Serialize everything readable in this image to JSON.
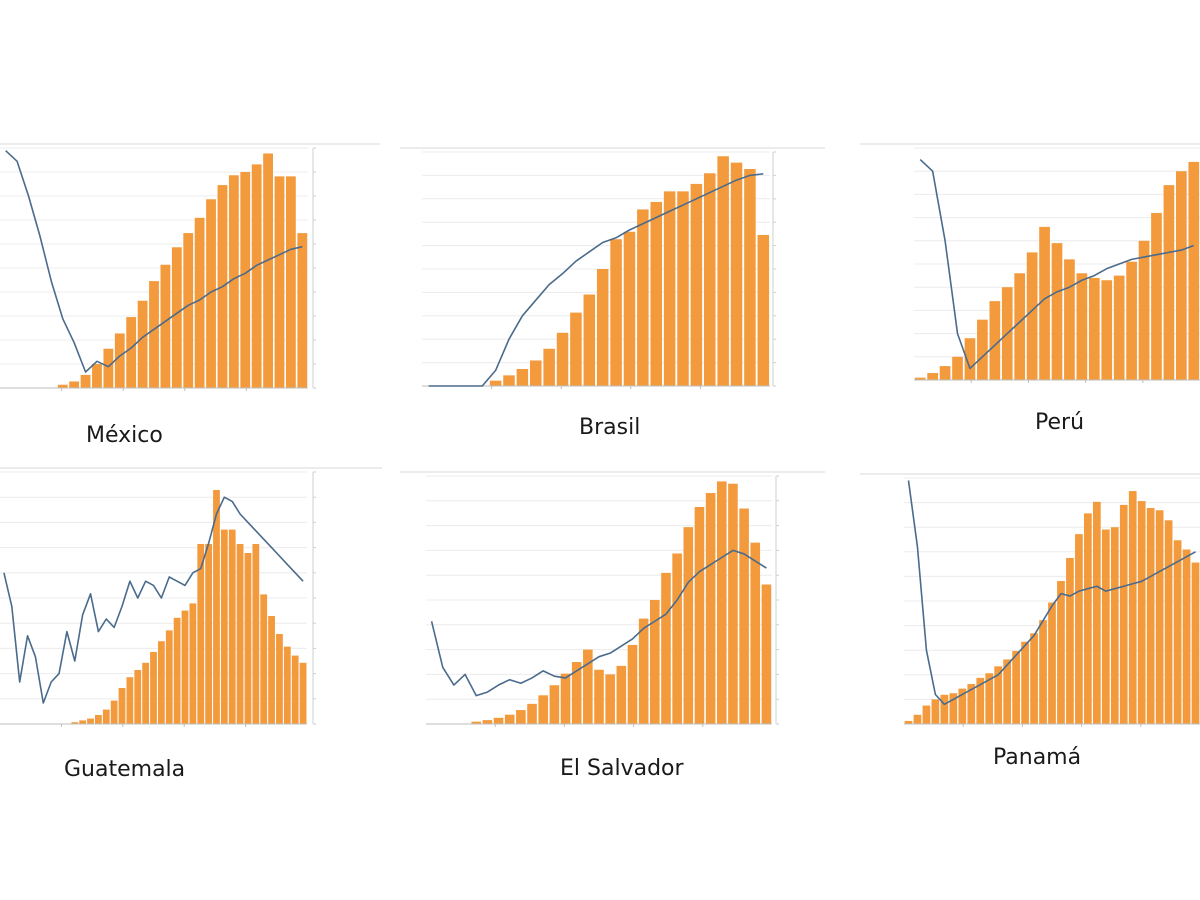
{
  "chart_data": [
    {
      "type": "bar",
      "title": "México",
      "categories": [
        "",
        "",
        "",
        "",
        "",
        "",
        "",
        "",
        "",
        "",
        "",
        "",
        "",
        "",
        "",
        "",
        "",
        "",
        "",
        "",
        "",
        "",
        "",
        "",
        "",
        "",
        ""
      ],
      "series": [
        {
          "type": "bar",
          "color": "#F39A3C",
          "values": [
            0,
            0,
            0,
            0,
            0,
            0.3,
            0.6,
            1.2,
            2.2,
            3.6,
            5.0,
            6.5,
            8.0,
            9.8,
            11.3,
            12.9,
            14.2,
            15.6,
            17.3,
            18.6,
            19.5,
            19.8,
            20.5,
            21.5,
            19.4,
            19.4,
            14.2
          ]
        },
        {
          "type": "line",
          "color": "#4A6B8C",
          "values": [
            0.089,
            0.085,
            0.072,
            0.057,
            0.04,
            0.026,
            0.017,
            0.006,
            0.01,
            0.008,
            0.012,
            0.015,
            0.019,
            0.022,
            0.025,
            0.028,
            0.031,
            0.033,
            0.036,
            0.038,
            0.041,
            0.043,
            0.046,
            0.048,
            0.05,
            0.052,
            0.053
          ]
        }
      ],
      "x_tick_labels": [
        "",
        "",
        "",
        ""
      ],
      "ylim": [
        0,
        22
      ],
      "y2lim": [
        0,
        0.09
      ],
      "grid": true
    },
    {
      "type": "bar",
      "title": "Brasil",
      "categories": [
        "",
        "",
        "",
        "",
        "",
        "",
        "",
        "",
        "",
        "",
        "",
        "",
        "",
        "",
        "",
        "",
        "",
        "",
        "",
        "",
        "",
        "",
        "",
        "",
        "",
        ""
      ],
      "series": [
        {
          "type": "bar",
          "color": "#F39A3C",
          "values": [
            0,
            0,
            0,
            0,
            0,
            0.5,
            1.0,
            1.6,
            2.4,
            3.5,
            5.0,
            6.9,
            8.6,
            11.0,
            13.8,
            14.5,
            16.6,
            17.3,
            18.3,
            18.3,
            19.0,
            20.0,
            21.6,
            21.0,
            20.4,
            14.2
          ]
        },
        {
          "type": "line",
          "color": "#4A6B8C",
          "values": [
            0.0,
            0.0,
            0.0,
            0.0,
            0.0,
            0.01,
            0.03,
            0.045,
            0.055,
            0.065,
            0.072,
            0.08,
            0.086,
            0.092,
            0.095,
            0.1,
            0.104,
            0.108,
            0.112,
            0.116,
            0.12,
            0.124,
            0.128,
            0.132,
            0.135,
            0.136
          ]
        }
      ],
      "x_tick_labels": [
        "",
        "",
        "",
        ""
      ],
      "ylim": [
        0,
        22
      ],
      "y2lim": [
        0,
        0.15
      ],
      "grid": true
    },
    {
      "type": "bar",
      "title": "Perú",
      "categories": [
        "",
        "",
        "",
        "",
        "",
        "",
        "",
        "",
        "",
        "",
        "",
        "",
        "",
        "",
        "",
        "",
        "",
        "",
        "",
        "",
        "",
        "",
        ""
      ],
      "series": [
        {
          "type": "bar",
          "color": "#F39A3C",
          "values": [
            0.1,
            0.3,
            0.6,
            1.0,
            1.8,
            2.6,
            3.4,
            4.0,
            4.6,
            5.5,
            6.6,
            5.9,
            5.2,
            4.6,
            4.4,
            4.3,
            4.5,
            5.1,
            6.0,
            7.2,
            8.4,
            9.0,
            9.4
          ]
        },
        {
          "type": "line",
          "color": "#4A6B8C",
          "values": [
            0.095,
            0.09,
            0.06,
            0.02,
            0.005,
            0.01,
            0.015,
            0.02,
            0.025,
            0.03,
            0.035,
            0.038,
            0.04,
            0.043,
            0.045,
            0.048,
            0.05,
            0.052,
            0.053,
            0.054,
            0.055,
            0.056,
            0.058
          ]
        }
      ],
      "x_tick_labels": [
        "",
        "",
        "",
        ""
      ],
      "ylim": [
        0,
        10
      ],
      "y2lim": [
        0,
        0.1
      ],
      "grid": true
    },
    {
      "type": "bar",
      "title": "Guatemala",
      "categories": [
        "",
        "",
        "",
        "",
        "",
        "",
        "",
        "",
        "",
        "",
        "",
        "",
        "",
        "",
        "",
        "",
        "",
        "",
        "",
        "",
        "",
        "",
        "",
        "",
        "",
        "",
        "",
        "",
        "",
        "",
        "",
        "",
        "",
        "",
        "",
        "",
        "",
        "",
        ""
      ],
      "series": [
        {
          "type": "bar",
          "color": "#F39A3C",
          "values": [
            0,
            0,
            0,
            0,
            0,
            0,
            0,
            0,
            0,
            0.1,
            0.2,
            0.3,
            0.5,
            0.8,
            1.3,
            2.0,
            2.6,
            3.0,
            3.4,
            4.0,
            4.6,
            5.2,
            5.9,
            6.3,
            6.7,
            10.0,
            10.0,
            13.0,
            10.8,
            10.8,
            10.0,
            9.5,
            10.0,
            7.2,
            6.0,
            5.0,
            4.3,
            3.8,
            3.4
          ]
        },
        {
          "type": "line",
          "color": "#4A6B8C",
          "values": [
            0.36,
            0.28,
            0.1,
            0.21,
            0.16,
            0.05,
            0.1,
            0.12,
            0.22,
            0.15,
            0.26,
            0.31,
            0.22,
            0.25,
            0.23,
            0.28,
            0.34,
            0.3,
            0.34,
            0.33,
            0.3,
            0.35,
            0.34,
            0.33,
            0.36,
            0.37,
            0.43,
            0.5,
            0.54,
            0.53,
            0.5,
            0.48,
            0.46,
            0.44,
            0.42,
            0.4,
            0.38,
            0.36,
            0.34
          ]
        }
      ],
      "x_tick_labels": [
        "",
        "",
        "",
        ""
      ],
      "ylim": [
        0,
        14
      ],
      "y2lim": [
        0,
        0.6
      ],
      "grid": true
    },
    {
      "type": "bar",
      "title": "El Salvador",
      "categories": [
        "",
        "",
        "",
        "",
        "",
        "",
        "",
        "",
        "",
        "",
        "",
        "",
        "",
        "",
        "",
        "",
        "",
        "",
        "",
        "",
        "",
        "",
        "",
        "",
        "",
        "",
        "",
        "",
        "",
        "",
        ""
      ],
      "series": [
        {
          "type": "bar",
          "color": "#F39A3C",
          "values": [
            0,
            0,
            0,
            0,
            0.3,
            0.5,
            0.8,
            1.2,
            1.8,
            2.6,
            3.7,
            5.0,
            6.5,
            8.0,
            9.6,
            7.0,
            6.4,
            7.5,
            10.2,
            13.6,
            16.0,
            19.5,
            22.0,
            25.4,
            28.0,
            29.8,
            31.3,
            31.0,
            27.8,
            23.4,
            18.0
          ]
        },
        {
          "type": "line",
          "color": "#4A6B8C",
          "values": [
            0.58,
            0.32,
            0.22,
            0.28,
            0.16,
            0.18,
            0.22,
            0.25,
            0.23,
            0.26,
            0.3,
            0.27,
            0.26,
            0.3,
            0.34,
            0.38,
            0.4,
            0.44,
            0.48,
            0.54,
            0.58,
            0.62,
            0.7,
            0.8,
            0.86,
            0.9,
            0.94,
            0.98,
            0.96,
            0.92,
            0.88
          ]
        }
      ],
      "x_tick_labels": [
        "",
        "",
        "",
        ""
      ],
      "ylim": [
        0,
        32
      ],
      "y2lim": [
        0,
        1.4
      ],
      "grid": true
    },
    {
      "type": "bar",
      "title": "Panamá",
      "categories": [
        "",
        "",
        "",
        "",
        "",
        "",
        "",
        "",
        "",
        "",
        "",
        "",
        "",
        "",
        "",
        "",
        "",
        "",
        "",
        "",
        "",
        "",
        "",
        "",
        "",
        "",
        "",
        "",
        "",
        "",
        "",
        "",
        ""
      ],
      "series": [
        {
          "type": "bar",
          "color": "#F39A3C",
          "values": [
            0.4,
            1.2,
            2.4,
            3.2,
            3.8,
            4.0,
            4.6,
            5.2,
            6.0,
            6.6,
            7.5,
            8.4,
            9.5,
            10.7,
            11.8,
            13.5,
            15.8,
            18.6,
            21.6,
            24.7,
            27.4,
            28.9,
            25.3,
            25.6,
            28.5,
            30.3,
            29.0,
            28.1,
            27.8,
            26.5,
            23.9,
            22.7,
            21.0
          ]
        },
        {
          "type": "line",
          "color": "#4A6B8C",
          "values": [
            0.99,
            0.72,
            0.3,
            0.12,
            0.08,
            0.1,
            0.12,
            0.14,
            0.16,
            0.18,
            0.2,
            0.24,
            0.28,
            0.32,
            0.36,
            0.42,
            0.48,
            0.53,
            0.52,
            0.54,
            0.55,
            0.56,
            0.54,
            0.55,
            0.56,
            0.57,
            0.58,
            0.6,
            0.62,
            0.64,
            0.66,
            0.68,
            0.7
          ]
        }
      ],
      "x_tick_labels": [
        "",
        "",
        "",
        ""
      ],
      "ylim": [
        0,
        32
      ],
      "y2lim": [
        0,
        1.0
      ],
      "grid": true
    }
  ]
}
